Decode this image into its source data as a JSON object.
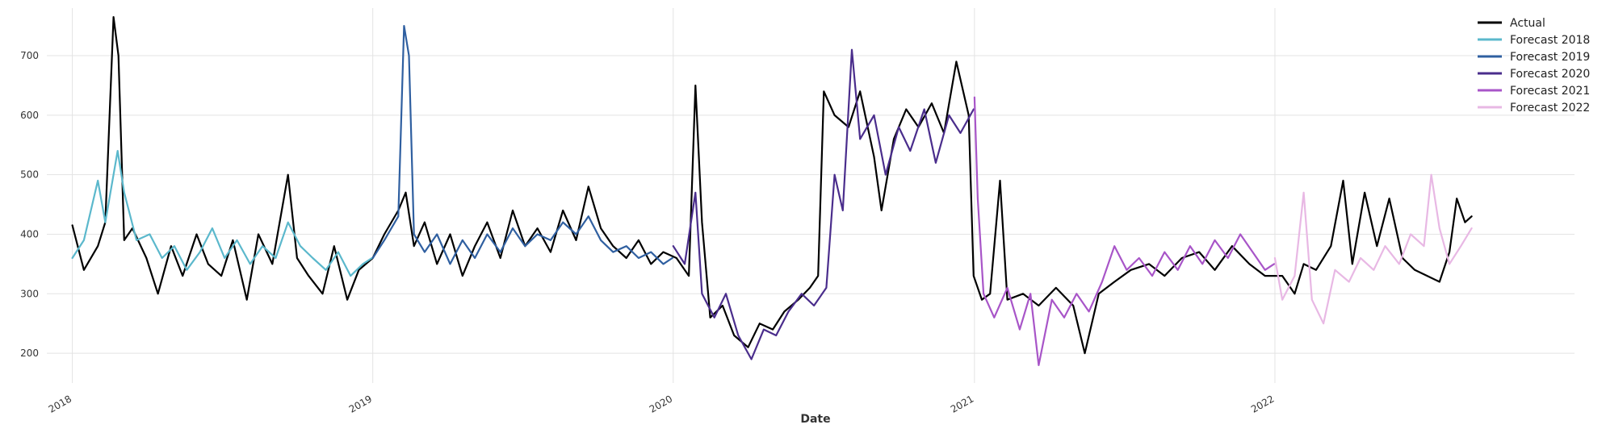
{
  "chart_data": {
    "type": "line",
    "title": "",
    "xlabel": "Date",
    "ylabel": "",
    "x_range": [
      "2017-12-01",
      "2022-12-31"
    ],
    "ylim": [
      150,
      780
    ],
    "y_ticks": [
      200,
      300,
      400,
      500,
      600,
      700
    ],
    "x_ticks": [
      {
        "date": "2018-01-01",
        "label": "2018"
      },
      {
        "date": "2019-01-01",
        "label": "2019"
      },
      {
        "date": "2020-01-01",
        "label": "2020"
      },
      {
        "date": "2021-01-01",
        "label": "2021"
      },
      {
        "date": "2022-01-01",
        "label": "2022"
      }
    ],
    "grid": true,
    "legend_position": "top-right",
    "series": [
      {
        "name": "Actual",
        "color": "#000000",
        "points": [
          [
            "2018-01-01",
            415
          ],
          [
            "2018-01-15",
            340
          ],
          [
            "2018-02-01",
            380
          ],
          [
            "2018-02-10",
            420
          ],
          [
            "2018-02-20",
            765
          ],
          [
            "2018-02-26",
            700
          ],
          [
            "2018-03-05",
            390
          ],
          [
            "2018-03-15",
            410
          ],
          [
            "2018-04-01",
            360
          ],
          [
            "2018-04-15",
            300
          ],
          [
            "2018-05-01",
            380
          ],
          [
            "2018-05-15",
            330
          ],
          [
            "2018-06-01",
            400
          ],
          [
            "2018-06-15",
            350
          ],
          [
            "2018-07-01",
            330
          ],
          [
            "2018-07-15",
            390
          ],
          [
            "2018-08-01",
            290
          ],
          [
            "2018-08-15",
            400
          ],
          [
            "2018-09-01",
            350
          ],
          [
            "2018-09-20",
            500
          ],
          [
            "2018-10-01",
            360
          ],
          [
            "2018-10-15",
            330
          ],
          [
            "2018-11-01",
            300
          ],
          [
            "2018-11-15",
            380
          ],
          [
            "2018-12-01",
            290
          ],
          [
            "2018-12-15",
            340
          ],
          [
            "2019-01-01",
            360
          ],
          [
            "2019-01-15",
            400
          ],
          [
            "2019-02-01",
            440
          ],
          [
            "2019-02-10",
            470
          ],
          [
            "2019-02-20",
            380
          ],
          [
            "2019-03-05",
            420
          ],
          [
            "2019-03-20",
            350
          ],
          [
            "2019-04-05",
            400
          ],
          [
            "2019-04-20",
            330
          ],
          [
            "2019-05-05",
            380
          ],
          [
            "2019-05-20",
            420
          ],
          [
            "2019-06-05",
            360
          ],
          [
            "2019-06-20",
            440
          ],
          [
            "2019-07-05",
            380
          ],
          [
            "2019-07-20",
            410
          ],
          [
            "2019-08-05",
            370
          ],
          [
            "2019-08-20",
            440
          ],
          [
            "2019-09-05",
            390
          ],
          [
            "2019-09-20",
            480
          ],
          [
            "2019-10-05",
            410
          ],
          [
            "2019-10-20",
            380
          ],
          [
            "2019-11-05",
            360
          ],
          [
            "2019-11-20",
            390
          ],
          [
            "2019-12-05",
            350
          ],
          [
            "2019-12-20",
            370
          ],
          [
            "2020-01-05",
            360
          ],
          [
            "2020-01-20",
            330
          ],
          [
            "2020-01-28",
            650
          ],
          [
            "2020-02-05",
            420
          ],
          [
            "2020-02-15",
            260
          ],
          [
            "2020-03-01",
            280
          ],
          [
            "2020-03-15",
            230
          ],
          [
            "2020-04-01",
            210
          ],
          [
            "2020-04-15",
            250
          ],
          [
            "2020-05-01",
            240
          ],
          [
            "2020-05-15",
            270
          ],
          [
            "2020-06-01",
            290
          ],
          [
            "2020-06-15",
            310
          ],
          [
            "2020-06-25",
            330
          ],
          [
            "2020-07-02",
            640
          ],
          [
            "2020-07-15",
            600
          ],
          [
            "2020-08-01",
            580
          ],
          [
            "2020-08-15",
            640
          ],
          [
            "2020-09-01",
            530
          ],
          [
            "2020-09-10",
            440
          ],
          [
            "2020-09-25",
            560
          ],
          [
            "2020-10-10",
            610
          ],
          [
            "2020-10-25",
            580
          ],
          [
            "2020-11-10",
            620
          ],
          [
            "2020-11-25",
            570
          ],
          [
            "2020-12-10",
            690
          ],
          [
            "2020-12-25",
            600
          ],
          [
            "2020-12-31",
            330
          ],
          [
            "2021-01-10",
            290
          ],
          [
            "2021-01-20",
            300
          ],
          [
            "2021-02-01",
            490
          ],
          [
            "2021-02-10",
            290
          ],
          [
            "2021-03-01",
            300
          ],
          [
            "2021-03-20",
            280
          ],
          [
            "2021-04-10",
            310
          ],
          [
            "2021-05-01",
            280
          ],
          [
            "2021-05-15",
            200
          ],
          [
            "2021-06-01",
            300
          ],
          [
            "2021-06-20",
            320
          ],
          [
            "2021-07-10",
            340
          ],
          [
            "2021-08-01",
            350
          ],
          [
            "2021-08-20",
            330
          ],
          [
            "2021-09-10",
            360
          ],
          [
            "2021-10-01",
            370
          ],
          [
            "2021-10-20",
            340
          ],
          [
            "2021-11-10",
            380
          ],
          [
            "2021-12-01",
            350
          ],
          [
            "2021-12-20",
            330
          ],
          [
            "2022-01-10",
            330
          ],
          [
            "2022-01-25",
            300
          ],
          [
            "2022-02-05",
            350
          ],
          [
            "2022-02-20",
            340
          ],
          [
            "2022-03-10",
            380
          ],
          [
            "2022-03-25",
            490
          ],
          [
            "2022-04-05",
            350
          ],
          [
            "2022-04-20",
            470
          ],
          [
            "2022-05-05",
            380
          ],
          [
            "2022-05-20",
            460
          ],
          [
            "2022-06-05",
            360
          ],
          [
            "2022-06-20",
            340
          ],
          [
            "2022-07-05",
            330
          ],
          [
            "2022-07-20",
            320
          ],
          [
            "2022-08-01",
            370
          ],
          [
            "2022-08-10",
            460
          ],
          [
            "2022-08-20",
            420
          ],
          [
            "2022-08-28",
            430
          ]
        ]
      },
      {
        "name": "Forecast 2018",
        "color": "#5bb8cc",
        "points": [
          [
            "2018-01-01",
            360
          ],
          [
            "2018-01-15",
            390
          ],
          [
            "2018-02-01",
            490
          ],
          [
            "2018-02-10",
            420
          ],
          [
            "2018-02-25",
            540
          ],
          [
            "2018-03-05",
            470
          ],
          [
            "2018-03-20",
            390
          ],
          [
            "2018-04-05",
            400
          ],
          [
            "2018-04-20",
            360
          ],
          [
            "2018-05-05",
            380
          ],
          [
            "2018-05-20",
            340
          ],
          [
            "2018-06-05",
            370
          ],
          [
            "2018-06-20",
            410
          ],
          [
            "2018-07-05",
            360
          ],
          [
            "2018-07-20",
            390
          ],
          [
            "2018-08-05",
            350
          ],
          [
            "2018-08-20",
            380
          ],
          [
            "2018-09-05",
            360
          ],
          [
            "2018-09-20",
            420
          ],
          [
            "2018-10-05",
            380
          ],
          [
            "2018-10-20",
            360
          ],
          [
            "2018-11-05",
            340
          ],
          [
            "2018-11-20",
            370
          ],
          [
            "2018-12-05",
            330
          ],
          [
            "2018-12-20",
            350
          ],
          [
            "2018-12-31",
            360
          ]
        ]
      },
      {
        "name": "Forecast 2019",
        "color": "#2f5fa0",
        "points": [
          [
            "2019-01-01",
            360
          ],
          [
            "2019-01-15",
            390
          ],
          [
            "2019-02-01",
            430
          ],
          [
            "2019-02-08",
            750
          ],
          [
            "2019-02-14",
            700
          ],
          [
            "2019-02-20",
            400
          ],
          [
            "2019-03-05",
            370
          ],
          [
            "2019-03-20",
            400
          ],
          [
            "2019-04-05",
            350
          ],
          [
            "2019-04-20",
            390
          ],
          [
            "2019-05-05",
            360
          ],
          [
            "2019-05-20",
            400
          ],
          [
            "2019-06-05",
            370
          ],
          [
            "2019-06-20",
            410
          ],
          [
            "2019-07-05",
            380
          ],
          [
            "2019-07-20",
            400
          ],
          [
            "2019-08-05",
            390
          ],
          [
            "2019-08-20",
            420
          ],
          [
            "2019-09-05",
            400
          ],
          [
            "2019-09-20",
            430
          ],
          [
            "2019-10-05",
            390
          ],
          [
            "2019-10-20",
            370
          ],
          [
            "2019-11-05",
            380
          ],
          [
            "2019-11-20",
            360
          ],
          [
            "2019-12-05",
            370
          ],
          [
            "2019-12-20",
            350
          ],
          [
            "2019-12-31",
            360
          ]
        ]
      },
      {
        "name": "Forecast 2020",
        "color": "#4a2d8c",
        "points": [
          [
            "2020-01-01",
            380
          ],
          [
            "2020-01-15",
            350
          ],
          [
            "2020-01-28",
            470
          ],
          [
            "2020-02-05",
            300
          ],
          [
            "2020-02-20",
            260
          ],
          [
            "2020-03-05",
            300
          ],
          [
            "2020-03-20",
            230
          ],
          [
            "2020-04-05",
            190
          ],
          [
            "2020-04-20",
            240
          ],
          [
            "2020-05-05",
            230
          ],
          [
            "2020-05-20",
            270
          ],
          [
            "2020-06-05",
            300
          ],
          [
            "2020-06-20",
            280
          ],
          [
            "2020-07-05",
            310
          ],
          [
            "2020-07-15",
            500
          ],
          [
            "2020-07-25",
            440
          ],
          [
            "2020-08-05",
            710
          ],
          [
            "2020-08-15",
            560
          ],
          [
            "2020-09-01",
            600
          ],
          [
            "2020-09-15",
            500
          ],
          [
            "2020-10-01",
            580
          ],
          [
            "2020-10-15",
            540
          ],
          [
            "2020-11-01",
            610
          ],
          [
            "2020-11-15",
            520
          ],
          [
            "2020-12-01",
            600
          ],
          [
            "2020-12-15",
            570
          ],
          [
            "2020-12-31",
            610
          ]
        ]
      },
      {
        "name": "Forecast 2021",
        "color": "#a855c8",
        "points": [
          [
            "2021-01-01",
            630
          ],
          [
            "2021-01-05",
            460
          ],
          [
            "2021-01-12",
            300
          ],
          [
            "2021-01-25",
            260
          ],
          [
            "2021-02-10",
            310
          ],
          [
            "2021-02-25",
            240
          ],
          [
            "2021-03-10",
            300
          ],
          [
            "2021-03-20",
            180
          ],
          [
            "2021-04-05",
            290
          ],
          [
            "2021-04-20",
            260
          ],
          [
            "2021-05-05",
            300
          ],
          [
            "2021-05-20",
            270
          ],
          [
            "2021-06-05",
            320
          ],
          [
            "2021-06-20",
            380
          ],
          [
            "2021-07-05",
            340
          ],
          [
            "2021-07-20",
            360
          ],
          [
            "2021-08-05",
            330
          ],
          [
            "2021-08-20",
            370
          ],
          [
            "2021-09-05",
            340
          ],
          [
            "2021-09-20",
            380
          ],
          [
            "2021-10-05",
            350
          ],
          [
            "2021-10-20",
            390
          ],
          [
            "2021-11-05",
            360
          ],
          [
            "2021-11-20",
            400
          ],
          [
            "2021-12-05",
            370
          ],
          [
            "2021-12-20",
            340
          ],
          [
            "2021-12-31",
            350
          ]
        ]
      },
      {
        "name": "Forecast 2022",
        "color": "#e8b8e4",
        "points": [
          [
            "2022-01-01",
            360
          ],
          [
            "2022-01-10",
            290
          ],
          [
            "2022-01-25",
            330
          ],
          [
            "2022-02-05",
            470
          ],
          [
            "2022-02-15",
            290
          ],
          [
            "2022-03-01",
            250
          ],
          [
            "2022-03-15",
            340
          ],
          [
            "2022-04-01",
            320
          ],
          [
            "2022-04-15",
            360
          ],
          [
            "2022-05-01",
            340
          ],
          [
            "2022-05-15",
            380
          ],
          [
            "2022-06-01",
            350
          ],
          [
            "2022-06-15",
            400
          ],
          [
            "2022-07-01",
            380
          ],
          [
            "2022-07-10",
            500
          ],
          [
            "2022-07-20",
            410
          ],
          [
            "2022-08-01",
            350
          ],
          [
            "2022-08-15",
            380
          ],
          [
            "2022-08-28",
            410
          ]
        ]
      }
    ]
  }
}
